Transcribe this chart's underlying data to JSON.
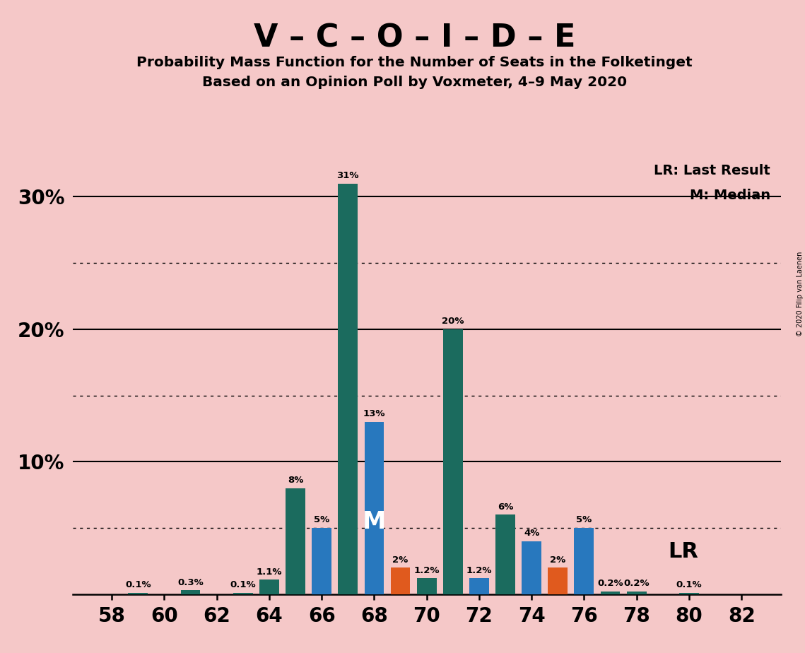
{
  "title_main": "V – C – O – I – D – E",
  "title_sub1": "Probability Mass Function for the Number of Seats in the Folketinget",
  "title_sub2": "Based on an Opinion Poll by Voxmeter, 4–9 May 2020",
  "background_color": "#f5c8c8",
  "seats": [
    58,
    59,
    60,
    61,
    62,
    63,
    64,
    65,
    66,
    67,
    68,
    69,
    70,
    71,
    72,
    73,
    74,
    75,
    76,
    77,
    78,
    79,
    80,
    81,
    82
  ],
  "values": [
    0.0,
    0.1,
    0.0,
    0.3,
    0.0,
    0.1,
    1.1,
    8.0,
    5.0,
    31.0,
    13.0,
    2.0,
    1.2,
    20.0,
    1.2,
    6.0,
    4.0,
    2.0,
    5.0,
    0.2,
    0.2,
    0.0,
    0.1,
    0.0,
    0.0
  ],
  "labels": [
    "0%",
    "0.1%",
    "0%",
    "0.3%",
    "0%",
    "0.1%",
    "1.1%",
    "8%",
    "5%",
    "31%",
    "13%",
    "2%",
    "1.2%",
    "20%",
    "1.2%",
    "6%",
    "4%",
    "2%",
    "5%",
    "0.2%",
    "0.2%",
    "0%",
    "0.1%",
    "0%",
    "0%"
  ],
  "colors": [
    "#1b6b5e",
    "#1b6b5e",
    "#1b6b5e",
    "#1b6b5e",
    "#1b6b5e",
    "#1b6b5e",
    "#1b6b5e",
    "#1b6b5e",
    "#2878be",
    "#1b6b5e",
    "#2878be",
    "#e05a1e",
    "#1b6b5e",
    "#1b6b5e",
    "#2878be",
    "#1b6b5e",
    "#2878be",
    "#e05a1e",
    "#2878be",
    "#1b6b5e",
    "#1b6b5e",
    "#1b6b5e",
    "#1b6b5e",
    "#1b6b5e",
    "#1b6b5e"
  ],
  "median_seat": 68,
  "lr_seat": 76,
  "xtick_seats": [
    58,
    60,
    62,
    64,
    66,
    68,
    70,
    72,
    74,
    76,
    78,
    80,
    82
  ],
  "legend_lr": "LR: Last Result",
  "legend_m": "M: Median",
  "label_lr": "LR",
  "label_m": "M",
  "copyright": "© 2020 Filip van Laenen",
  "ylim": [
    0,
    34
  ],
  "yticks": [
    0,
    10,
    20,
    30
  ],
  "yticklabels": [
    "",
    "10%",
    "20%",
    "30%"
  ]
}
